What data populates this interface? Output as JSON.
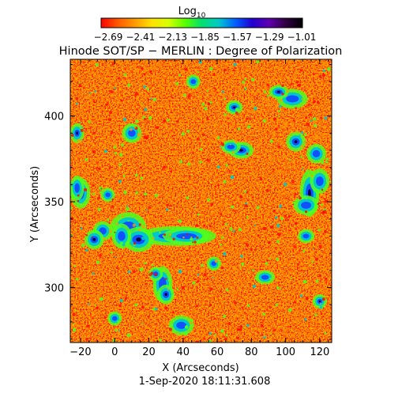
{
  "colorbar": {
    "title": "Log",
    "title_subscript": "10",
    "tick_labels": [
      "−2.69",
      "−2.41",
      "−2.13",
      "−1.85",
      "−1.57",
      "−1.29",
      "−1.01"
    ],
    "range": [
      -2.69,
      -1.01
    ],
    "colormap": [
      "#ff0000",
      "#ff5a00",
      "#ff9900",
      "#ffe000",
      "#d8ff00",
      "#5aff00",
      "#00e070",
      "#00c8c8",
      "#0060ff",
      "#2000d0",
      "#6000b0",
      "#300040",
      "#000000"
    ]
  },
  "title": "Hinode SOT/SP − MERLIN : Degree of Polarization",
  "xlabel": "X (Arcseconds)",
  "ylabel": "Y (Arcseconds)",
  "x_ticks": [
    "−20",
    "0",
    "20",
    "40",
    "60",
    "80",
    "100",
    "120"
  ],
  "y_ticks": [
    "300",
    "350",
    "400"
  ],
  "xlim": [
    -26,
    127
  ],
  "ylim": [
    268,
    433
  ],
  "timestamp": "1-Sep-2020 18:11:31.608",
  "map_colors": {
    "background": "#ff3c00",
    "low": "#ff0000",
    "mid": "#ff9a00",
    "high": "#ffd800",
    "green": "#4dff20",
    "cyan": "#00c8c8",
    "blue": "#1050ff",
    "dark": "#080040"
  }
}
